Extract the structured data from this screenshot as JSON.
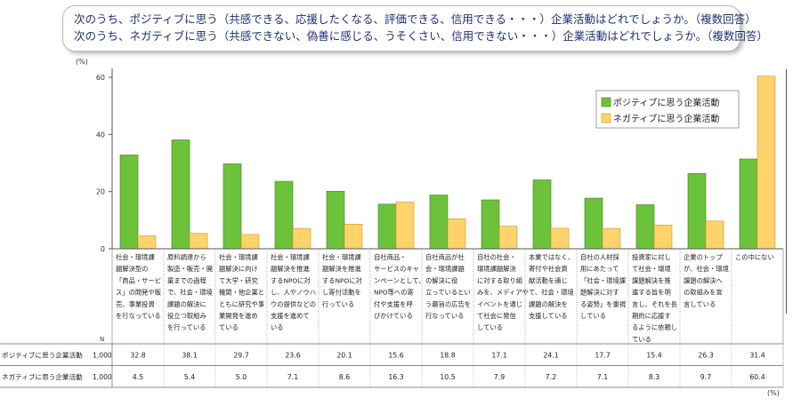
{
  "question": {
    "line1": "次のうち、ポジティブに思う（共感できる、応援したくなる、評価できる、信用できる・・・）企業活動はどれでしょうか。（複数回答）",
    "line2": "次のうち、ネガティブに思う（共感できない、偽善に感じる、うそくさい、信用できない・・・）企業活動はどれでしょうか。（複数回答）"
  },
  "chart_data": {
    "type": "bar",
    "y_unit": "(%)",
    "table_unit": "(%)",
    "ylim": [
      0,
      60
    ],
    "yticks": [
      0,
      20,
      40,
      60
    ],
    "legend_position": "top-right",
    "n_header": "N",
    "categories": [
      [
        "社会・環境課",
        "題解決型の",
        "「商品・サービ",
        "ス」の開発や販",
        "売、事業投資",
        "を行なっている"
      ],
      [
        "原料調達から",
        "製造・販売・廃",
        "棄までの過程",
        "で、社会・環境",
        "課題の解決に",
        "役立つ取組み",
        "を行っている"
      ],
      [
        "社会・環境課",
        "題解決に向け",
        "て大学・研究",
        "機関・他企業と",
        "ともに研究や事",
        "業開発を進め",
        "ている"
      ],
      [
        "社会・環境課",
        "題解決を推進",
        "するNPOに対",
        "し、人やノウハ",
        "ウの提供などの",
        "支援を進めて",
        "いる"
      ],
      [
        "社会・環境課",
        "題解決を推進",
        "するNPOに対",
        "し寄付活動を",
        "行っている"
      ],
      [
        "自社商品・",
        "サービスのキャ",
        "ンペーンとして、",
        "NPO等への寄",
        "付や支援を呼",
        "びかけている"
      ],
      [
        "自社商品が社",
        "会・環境課題",
        "の解決に役",
        "立っているとい",
        "う趣旨の広告を",
        "行なっている"
      ],
      [
        "自社の社会・",
        "環境課題解決",
        "に対する取り組",
        "みを、メディアや",
        "イベントを通じ",
        "て社会に発信",
        "している"
      ],
      [
        "本業ではなく、",
        "寄付や社会貢",
        "献活動を通じ",
        "て、社会・環境",
        "課題の解決を",
        "支援している"
      ],
      [
        "自社の人材採",
        "用にあたって",
        "「社会・環境課",
        "題解決に対す",
        "る姿勢」を重視",
        "している"
      ],
      [
        "投資家に対し",
        "て社会・環境",
        "課題解決を推",
        "進する旨を明",
        "言し、それを長",
        "期的に応援す",
        "るように依頼し",
        "ている"
      ],
      [
        "企業のトップ",
        "が、社会・環境",
        "課題の解決へ",
        "の取組みを宣",
        "言している"
      ],
      [
        "この中にない"
      ]
    ],
    "series": [
      {
        "name": "ポジティブに思う企業活動",
        "n": "1,000",
        "color": "#6cc33a",
        "stroke": "#3e7e1f",
        "values": [
          32.8,
          38.1,
          29.7,
          23.6,
          20.1,
          15.6,
          18.8,
          17.1,
          24.1,
          17.7,
          15.4,
          26.3,
          31.4
        ],
        "labels": [
          "32.8",
          "38.1",
          "29.7",
          "23.6",
          "20.1",
          "15.6",
          "18.8",
          "17.1",
          "24.1",
          "17.7",
          "15.4",
          "26.3",
          "31.4"
        ]
      },
      {
        "name": "ネガティブに思う企業活動",
        "n": "1,000",
        "color": "#ffd36b",
        "stroke": "#c9962e",
        "values": [
          4.5,
          5.4,
          5.0,
          7.1,
          8.6,
          16.3,
          10.5,
          7.9,
          7.2,
          7.1,
          8.3,
          9.7,
          60.4
        ],
        "labels": [
          "4.5",
          "5.4",
          "5.0",
          "7.1",
          "8.6",
          "16.3",
          "10.5",
          "7.9",
          "7.2",
          "7.1",
          "8.3",
          "9.7",
          "60.4"
        ]
      }
    ]
  }
}
